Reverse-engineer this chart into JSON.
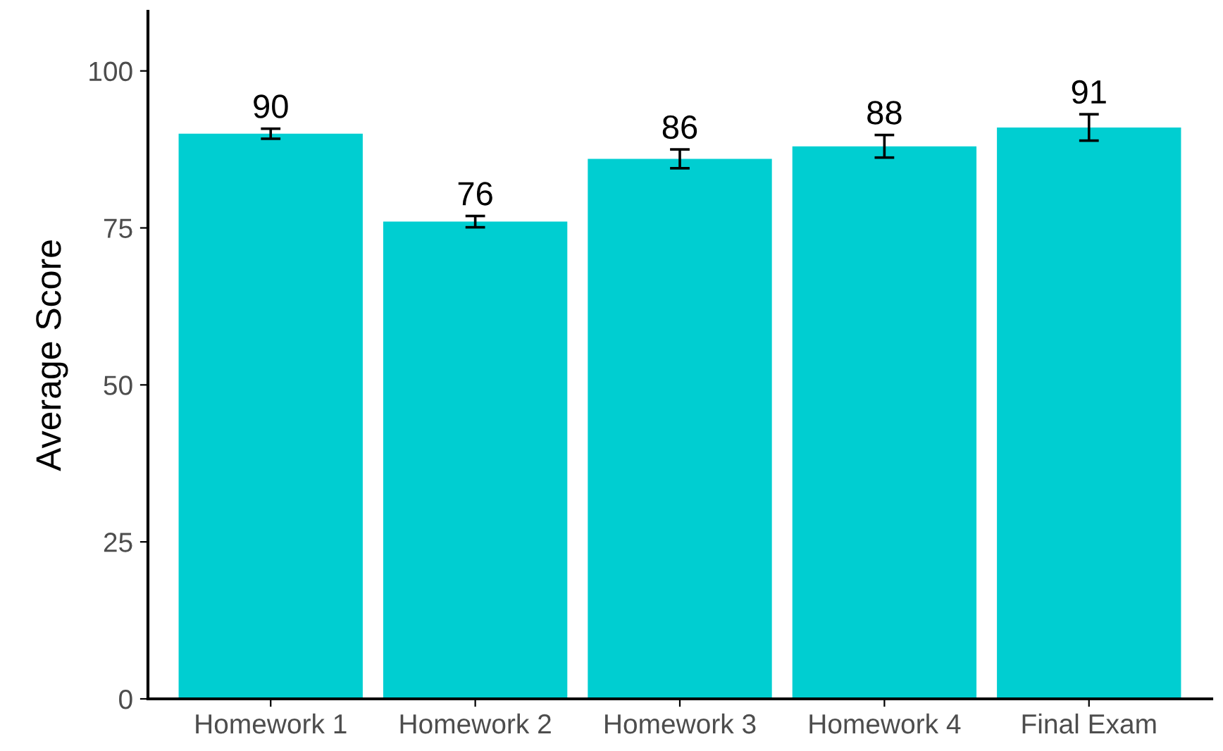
{
  "chart_data": {
    "type": "bar",
    "ylabel": "Average Score",
    "categories": [
      "Homework 1",
      "Homework 2",
      "Homework 3",
      "Homework 4",
      "Final Exam"
    ],
    "values": [
      90,
      76,
      86,
      88,
      91
    ],
    "errors": [
      0.8,
      0.9,
      1.5,
      1.8,
      2.1
    ],
    "color": "#00ced1",
    "ylim": [
      0,
      109.5
    ],
    "yticks": [
      0,
      25,
      50,
      75,
      100
    ],
    "data_labels": true,
    "grid": false,
    "legend": false
  }
}
